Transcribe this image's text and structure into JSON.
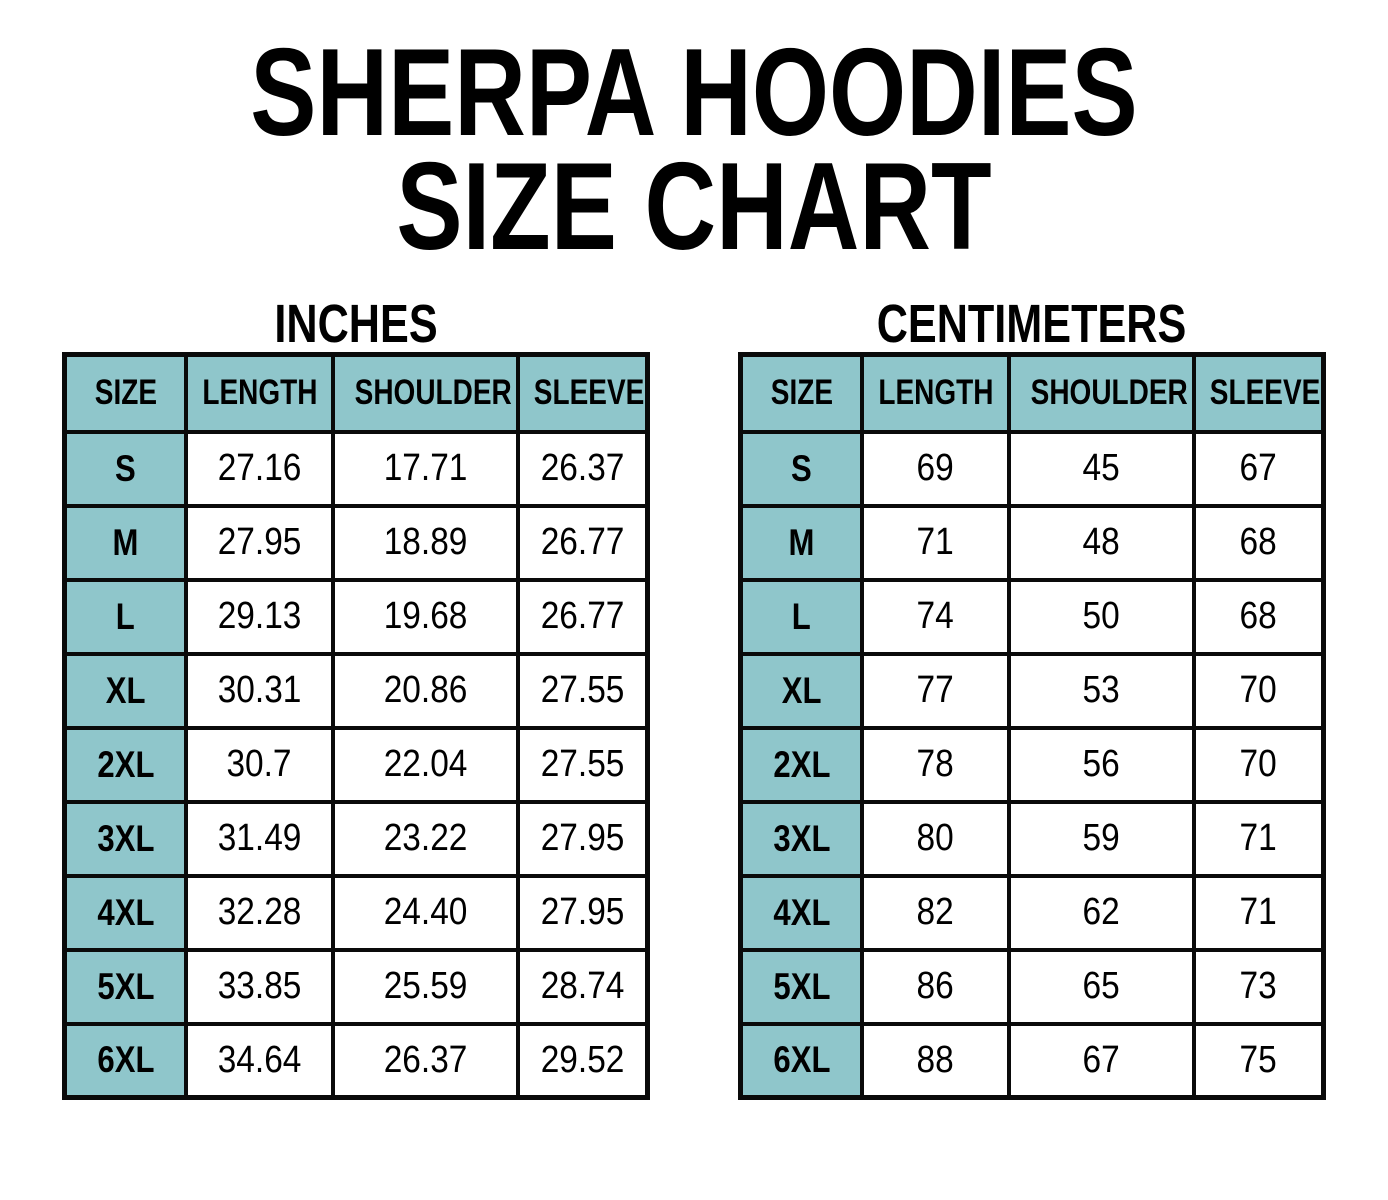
{
  "title": {
    "line1": "SHERPA HOODIES",
    "line2": "SIZE CHART"
  },
  "colors": {
    "header_fill": "#8FC6CB",
    "border": "#0A0A0A",
    "text": "#000000",
    "background": "#FFFFFF"
  },
  "tables": [
    {
      "label": "INCHES",
      "columns": [
        "SIZE",
        "LENGTH",
        "SHOULDER",
        "SLEEVE"
      ],
      "rows": [
        {
          "size": "S",
          "values": [
            "27.16",
            "17.71",
            "26.37"
          ]
        },
        {
          "size": "M",
          "values": [
            "27.95",
            "18.89",
            "26.77"
          ]
        },
        {
          "size": "L",
          "values": [
            "29.13",
            "19.68",
            "26.77"
          ]
        },
        {
          "size": "XL",
          "values": [
            "30.31",
            "20.86",
            "27.55"
          ]
        },
        {
          "size": "2XL",
          "values": [
            "30.7",
            "22.04",
            "27.55"
          ]
        },
        {
          "size": "3XL",
          "values": [
            "31.49",
            "23.22",
            "27.95"
          ]
        },
        {
          "size": "4XL",
          "values": [
            "32.28",
            "24.40",
            "27.95"
          ]
        },
        {
          "size": "5XL",
          "values": [
            "33.85",
            "25.59",
            "28.74"
          ]
        },
        {
          "size": "6XL",
          "values": [
            "34.64",
            "26.37",
            "29.52"
          ]
        }
      ]
    },
    {
      "label": "CENTIMETERS",
      "columns": [
        "SIZE",
        "LENGTH",
        "SHOULDER",
        "SLEEVE"
      ],
      "rows": [
        {
          "size": "S",
          "values": [
            "69",
            "45",
            "67"
          ]
        },
        {
          "size": "M",
          "values": [
            "71",
            "48",
            "68"
          ]
        },
        {
          "size": "L",
          "values": [
            "74",
            "50",
            "68"
          ]
        },
        {
          "size": "XL",
          "values": [
            "77",
            "53",
            "70"
          ]
        },
        {
          "size": "2XL",
          "values": [
            "78",
            "56",
            "70"
          ]
        },
        {
          "size": "3XL",
          "values": [
            "80",
            "59",
            "71"
          ]
        },
        {
          "size": "4XL",
          "values": [
            "82",
            "62",
            "71"
          ]
        },
        {
          "size": "5XL",
          "values": [
            "86",
            "65",
            "73"
          ]
        },
        {
          "size": "6XL",
          "values": [
            "88",
            "67",
            "75"
          ]
        }
      ]
    }
  ],
  "chart_data": [
    {
      "type": "table",
      "title": "Sherpa Hoodies Size Chart — INCHES",
      "columns": [
        "SIZE",
        "LENGTH",
        "SHOULDER",
        "SLEEVE"
      ],
      "rows": [
        [
          "S",
          27.16,
          17.71,
          26.37
        ],
        [
          "M",
          27.95,
          18.89,
          26.77
        ],
        [
          "L",
          29.13,
          19.68,
          26.77
        ],
        [
          "XL",
          30.31,
          20.86,
          27.55
        ],
        [
          "2XL",
          30.7,
          22.04,
          27.55
        ],
        [
          "3XL",
          31.49,
          23.22,
          27.95
        ],
        [
          "4XL",
          32.28,
          24.4,
          27.95
        ],
        [
          "5XL",
          33.85,
          25.59,
          28.74
        ],
        [
          "6XL",
          34.64,
          26.37,
          29.52
        ]
      ]
    },
    {
      "type": "table",
      "title": "Sherpa Hoodies Size Chart — CENTIMETERS",
      "columns": [
        "SIZE",
        "LENGTH",
        "SHOULDER",
        "SLEEVE"
      ],
      "rows": [
        [
          "S",
          69,
          45,
          67
        ],
        [
          "M",
          71,
          48,
          68
        ],
        [
          "L",
          74,
          50,
          68
        ],
        [
          "XL",
          77,
          53,
          70
        ],
        [
          "2XL",
          78,
          56,
          70
        ],
        [
          "3XL",
          80,
          59,
          71
        ],
        [
          "4XL",
          82,
          62,
          71
        ],
        [
          "5XL",
          86,
          65,
          73
        ],
        [
          "6XL",
          88,
          67,
          75
        ]
      ]
    }
  ]
}
